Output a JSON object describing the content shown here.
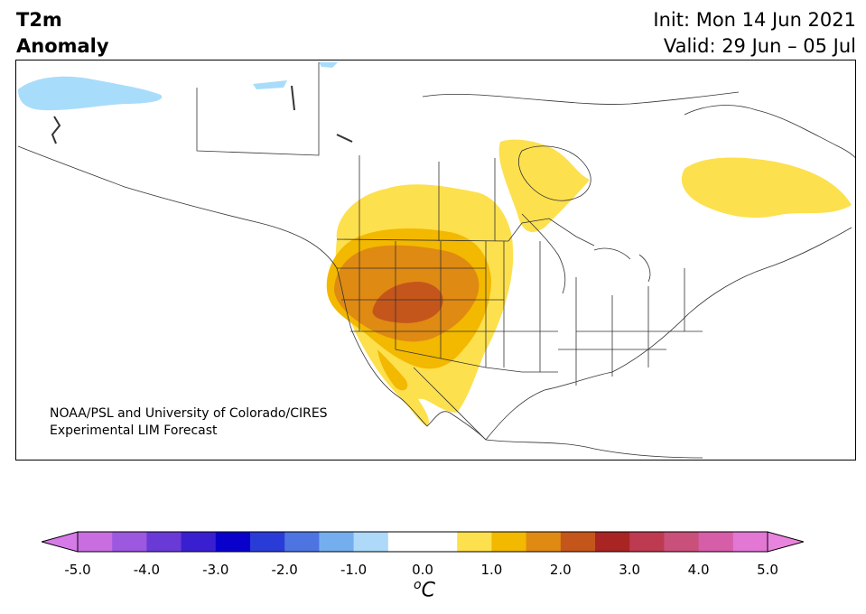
{
  "title": {
    "line1": "T2m",
    "line2": "Anomaly"
  },
  "header_right": {
    "init": "Init: Mon 14 Jun 2021",
    "valid": "Valid: 29 Jun – 05 Jul"
  },
  "credit": {
    "line1": "NOAA/PSL and University of Colorado/CIRES",
    "line2": "Experimental LIM Forecast"
  },
  "colorbar": {
    "min": -5.0,
    "max": 5.0,
    "step": 0.5,
    "extend": "both",
    "unit_prefix": "o",
    "unit": "C",
    "ticks": [
      "-5.0",
      "-4.0",
      "-3.0",
      "-2.0",
      "-1.0",
      "0.0",
      "1.0",
      "2.0",
      "3.0",
      "4.0",
      "5.0"
    ],
    "bin_colors": [
      "#c86ee0",
      "#9d58e0",
      "#6a3ad6",
      "#3a1fd0",
      "#0a00cc",
      "#2a3cd8",
      "#4d74e0",
      "#75aeee",
      "#aed9f8",
      "#ffffff",
      "#ffffff",
      "#fde04d",
      "#f3b800",
      "#df8a12",
      "#c4561c",
      "#a82524",
      "#bd3a50",
      "#c9507a",
      "#d65ea8",
      "#e277d4"
    ],
    "under_color": "#d57ae6",
    "over_color": "#e883de"
  },
  "map_legend_colors": {
    "ice": "#a8dcfb",
    "level_0_5": "#fde04d",
    "level_1_0": "#f3b800",
    "level_1_5": "#df8a12",
    "level_2_0": "#c4561c",
    "border": "#333333"
  }
}
